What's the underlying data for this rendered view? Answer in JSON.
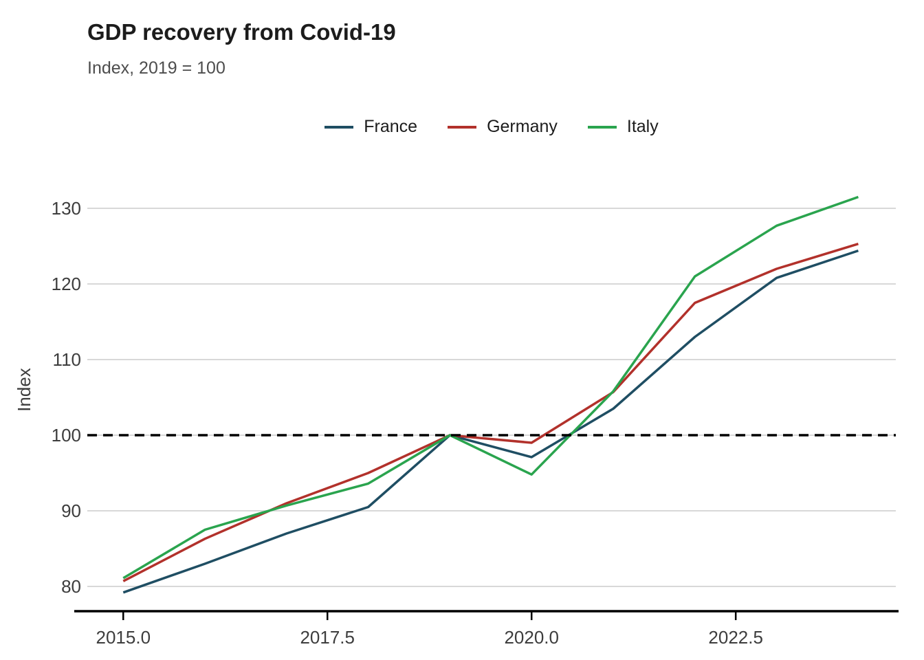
{
  "page": {
    "title": "GDP recovery from Covid-19",
    "subtitle": "Index, 2019 = 100"
  },
  "colors": {
    "france": "#1f4e63",
    "germany": "#b2312b",
    "italy": "#2aa44e",
    "grid": "#d8d8d8",
    "axis": "#000000",
    "reference_line": "#000000",
    "tick_text": "#3d3d3d",
    "title_text": "#1c1c1c",
    "subtitle_text": "#4d4d4d"
  },
  "chart_data": {
    "type": "line",
    "title": "GDP recovery from Covid-19",
    "subtitle": "Index, 2019 = 100",
    "xlabel": "",
    "ylabel": "Index",
    "x": [
      2015,
      2016,
      2017,
      2018,
      2019,
      2020,
      2021,
      2022,
      2023,
      2024
    ],
    "series": [
      {
        "name": "France",
        "color_key": "france",
        "values": [
          79.2,
          83.0,
          87.0,
          90.5,
          100,
          97.1,
          103.5,
          113.0,
          120.8,
          124.4
        ]
      },
      {
        "name": "Germany",
        "color_key": "germany",
        "values": [
          80.7,
          86.3,
          91.0,
          95.0,
          100,
          99.0,
          105.7,
          117.5,
          122.0,
          125.3
        ]
      },
      {
        "name": "Italy",
        "color_key": "italy",
        "values": [
          81.1,
          87.5,
          90.7,
          93.6,
          100,
          94.8,
          105.8,
          121.0,
          127.7,
          131.5
        ]
      }
    ],
    "y_ticks": [
      80,
      90,
      100,
      110,
      120,
      130
    ],
    "x_ticks": [
      2015.0,
      2017.5,
      2020.0,
      2022.5
    ],
    "x_tick_labels": [
      "2015.0",
      "2017.5",
      "2020.0",
      "2022.5"
    ],
    "xlim": [
      2014.56,
      2024.46
    ],
    "ylim": [
      76.82,
      133.5
    ],
    "reference_line_y": 100,
    "grid": true,
    "legend_position": "top-center"
  }
}
